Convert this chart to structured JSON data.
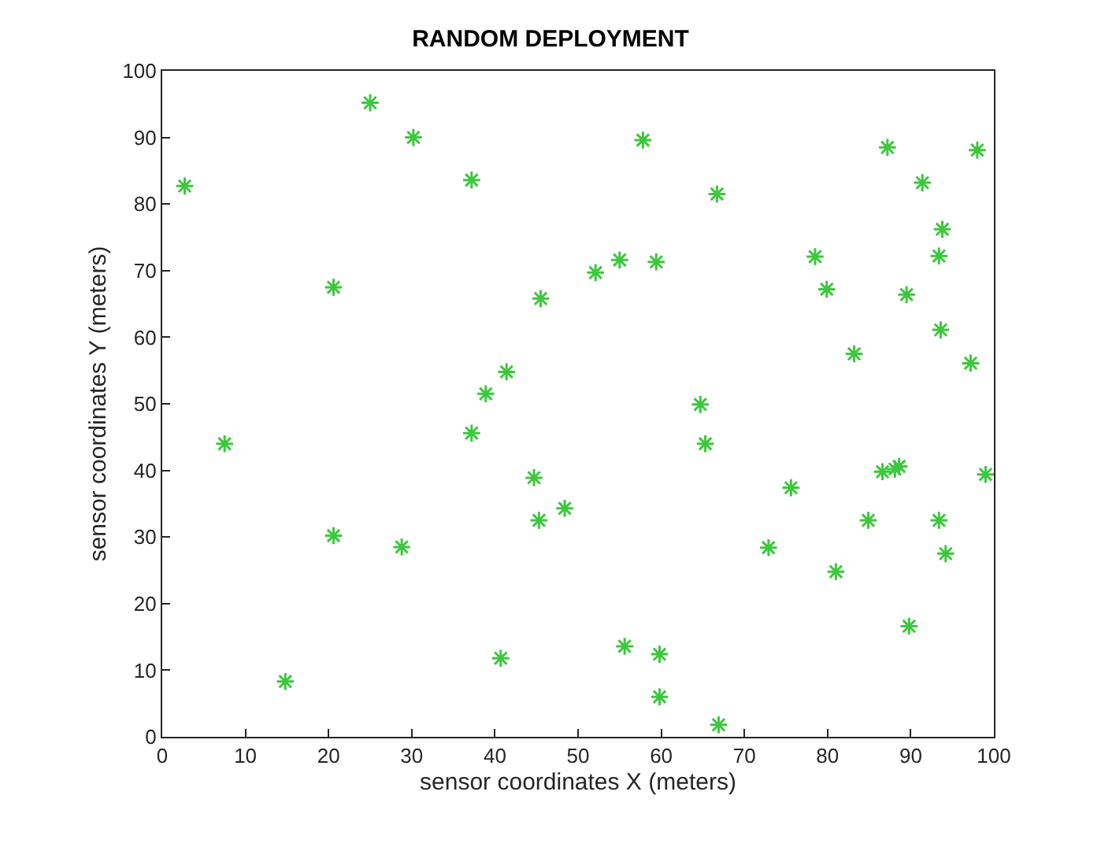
{
  "chart_data": {
    "type": "scatter",
    "title": "RANDOM DEPLOYMENT",
    "xlabel": "sensor coordinates X (meters)",
    "ylabel": "sensor coordinates Y (meters)",
    "x": [
      2.7,
      7.5,
      14.8,
      20.6,
      20.6,
      25,
      28.8,
      30.2,
      37.2,
      37.2,
      38.9,
      40.7,
      41.4,
      44.7,
      45.3,
      45.5,
      48.4,
      52.1,
      55,
      55.6,
      57.8,
      59.4,
      59.8,
      59.8,
      64.7,
      65.3,
      66.7,
      66.9,
      72.9,
      75.6,
      78.5,
      79.9,
      81,
      83.2,
      84.9,
      86.6,
      87.2,
      88.1,
      88.6,
      89.5,
      89.8,
      91.4,
      93.4,
      93.4,
      93.6,
      93.8,
      94.2,
      97.2,
      98,
      99
    ],
    "values": [
      82.7,
      44,
      8.3,
      67.5,
      30.2,
      95.2,
      28.5,
      90,
      83.6,
      45.6,
      51.5,
      11.8,
      54.8,
      38.9,
      32.5,
      65.8,
      34.3,
      69.7,
      71.6,
      13.6,
      89.6,
      71.3,
      12.4,
      6,
      49.9,
      44,
      81.5,
      1.8,
      28.4,
      37.4,
      72.1,
      67.2,
      24.8,
      57.5,
      32.5,
      39.8,
      88.5,
      40.2,
      40.6,
      66.4,
      16.6,
      83.2,
      72.2,
      32.5,
      61.1,
      76.2,
      27.5,
      56.1,
      88.1,
      39.4
    ],
    "color": "#3cc83c",
    "marker": "cross",
    "xlim": [
      0,
      100
    ],
    "xticks": [
      0,
      10,
      20,
      30,
      40,
      50,
      60,
      70,
      80,
      90,
      100
    ],
    "ylim": [
      0,
      100
    ],
    "yticks": [
      0,
      10,
      20,
      30,
      40,
      50,
      60,
      70,
      80,
      90,
      100
    ]
  }
}
